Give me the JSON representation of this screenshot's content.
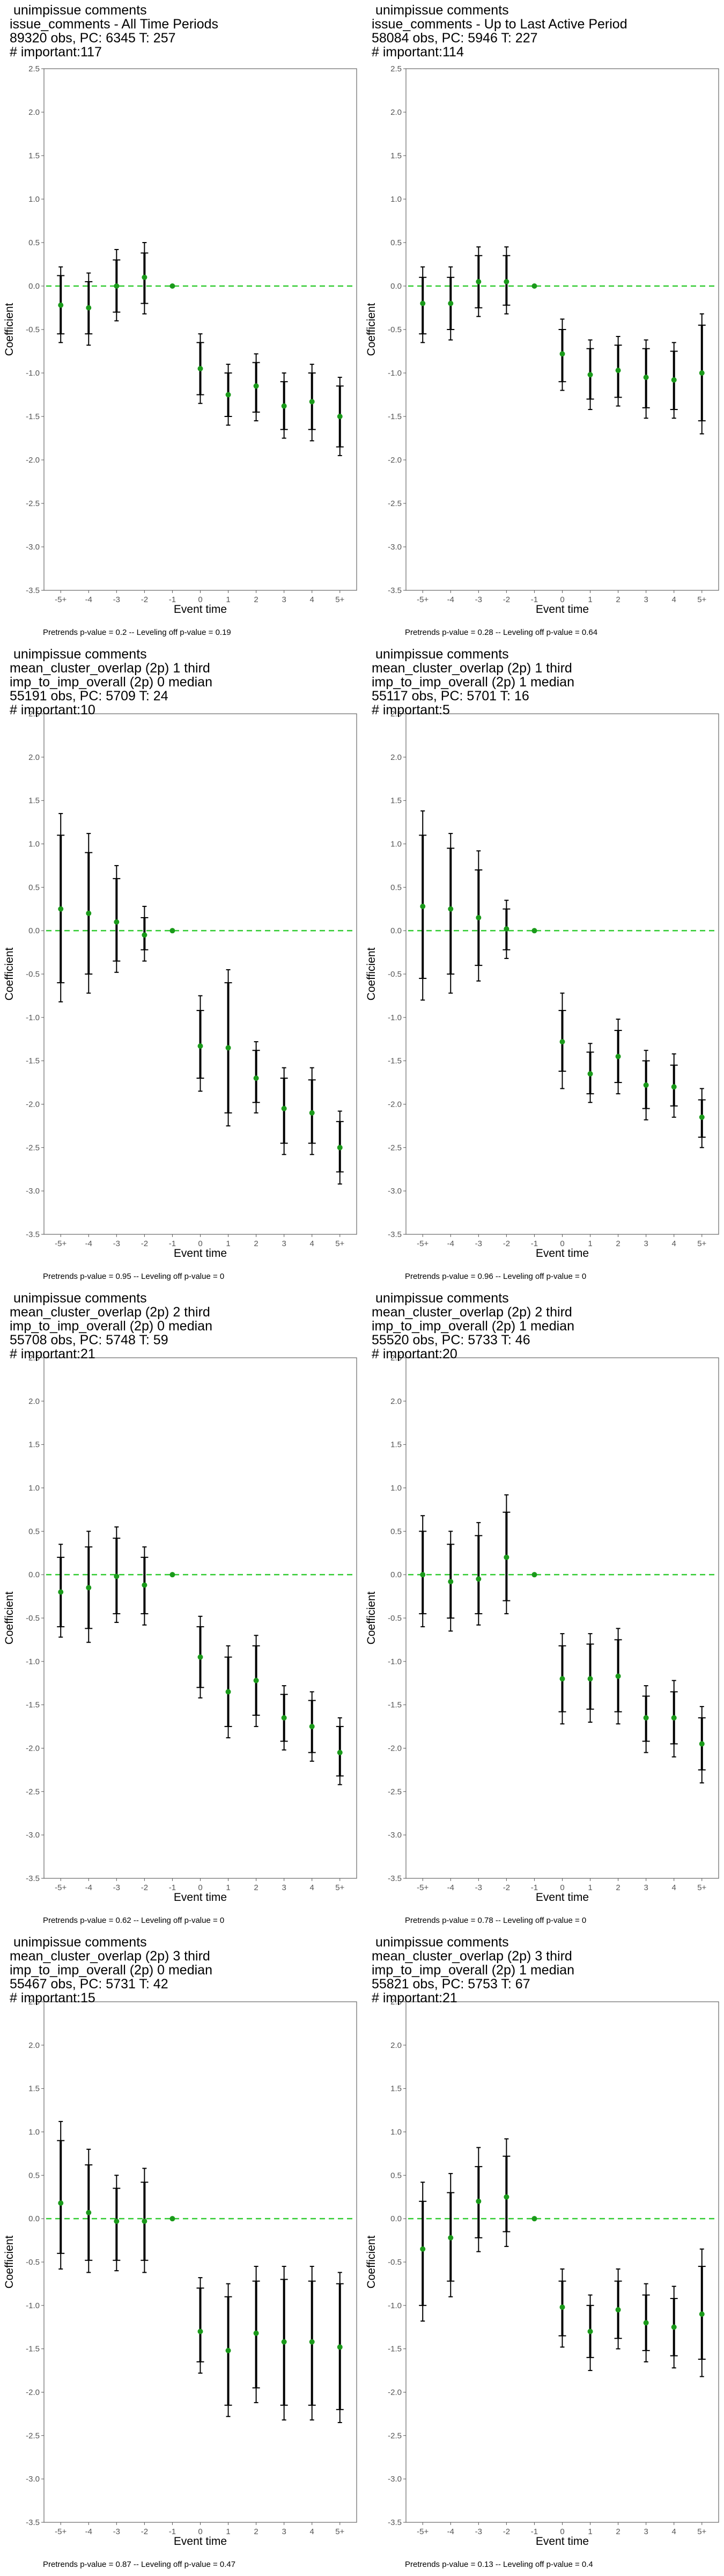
{
  "y_axis_label": "Coefficient",
  "x_axis_label": "Event time",
  "x_tick_labels": [
    "-5+",
    "-4",
    "-3",
    "-2",
    "-1",
    "0",
    "1",
    "2",
    "3",
    "4",
    "5+"
  ],
  "y_tick_labels": [
    "2.5",
    "2.0",
    "1.5",
    "1.0",
    "0.5",
    "0.0",
    "-0.5",
    "-1.0",
    "-1.5",
    "-2.0",
    "-2.5",
    "-3.0",
    "-3.5"
  ],
  "colors": {
    "point": "#1a9a1a",
    "zero_line": "#33cc33",
    "bar": "#000000"
  },
  "chart_data": [
    {
      "type": "scatter",
      "title_lines": [
        "unimpissue comments",
        "issue_comments - All Time Periods",
        "89320 obs, PC: 6345 T: 257",
        "# important:117"
      ],
      "caption": "Pretrends p-value = 0.2 -- Leveling off p-value = 0.19",
      "ylim": [
        -3.5,
        2.5
      ],
      "x": [
        "-5+",
        "-4",
        "-3",
        "-2",
        "-1",
        "0",
        "1",
        "2",
        "3",
        "4",
        "5+"
      ],
      "coef": [
        -0.22,
        -0.25,
        0.0,
        0.1,
        0.0,
        -0.95,
        -1.25,
        -1.15,
        -1.38,
        -1.33,
        -1.5
      ],
      "ci_inner": [
        [
          -0.55,
          0.12
        ],
        [
          -0.55,
          0.05
        ],
        [
          -0.3,
          0.3
        ],
        [
          -0.2,
          0.38
        ],
        null,
        [
          -1.25,
          -0.65
        ],
        [
          -1.5,
          -1.0
        ],
        [
          -1.45,
          -0.88
        ],
        [
          -1.65,
          -1.1
        ],
        [
          -1.65,
          -1.0
        ],
        [
          -1.85,
          -1.15
        ]
      ],
      "ci_outer": [
        [
          -0.65,
          0.22
        ],
        [
          -0.68,
          0.15
        ],
        [
          -0.4,
          0.42
        ],
        [
          -0.32,
          0.5
        ],
        null,
        [
          -1.35,
          -0.55
        ],
        [
          -1.6,
          -0.9
        ],
        [
          -1.55,
          -0.78
        ],
        [
          -1.75,
          -1.0
        ],
        [
          -1.78,
          -0.9
        ],
        [
          -1.95,
          -1.05
        ]
      ]
    },
    {
      "type": "scatter",
      "title_lines": [
        "unimpissue comments",
        "issue_comments - Up to Last Active Period",
        "58084 obs, PC: 5946 T: 227",
        "# important:114"
      ],
      "caption": "Pretrends p-value = 0.28 -- Leveling off p-value = 0.64",
      "ylim": [
        -3.5,
        2.5
      ],
      "x": [
        "-5+",
        "-4",
        "-3",
        "-2",
        "-1",
        "0",
        "1",
        "2",
        "3",
        "4",
        "5+"
      ],
      "coef": [
        -0.2,
        -0.2,
        0.05,
        0.05,
        0.0,
        -0.78,
        -1.02,
        -0.97,
        -1.05,
        -1.08,
        -1.0
      ],
      "ci_inner": [
        [
          -0.55,
          0.1
        ],
        [
          -0.5,
          0.1
        ],
        [
          -0.25,
          0.35
        ],
        [
          -0.22,
          0.35
        ],
        null,
        [
          -1.1,
          -0.5
        ],
        [
          -1.3,
          -0.72
        ],
        [
          -1.28,
          -0.68
        ],
        [
          -1.4,
          -0.72
        ],
        [
          -1.42,
          -0.75
        ],
        [
          -1.55,
          -0.45
        ]
      ],
      "ci_outer": [
        [
          -0.65,
          0.22
        ],
        [
          -0.62,
          0.22
        ],
        [
          -0.35,
          0.45
        ],
        [
          -0.32,
          0.45
        ],
        null,
        [
          -1.2,
          -0.38
        ],
        [
          -1.42,
          -0.62
        ],
        [
          -1.38,
          -0.58
        ],
        [
          -1.52,
          -0.62
        ],
        [
          -1.52,
          -0.65
        ],
        [
          -1.7,
          -0.32
        ]
      ]
    },
    {
      "type": "scatter",
      "title_lines": [
        "unimpissue comments",
        "mean_cluster_overlap (2p) 1 third",
        "imp_to_imp_overall (2p) 0 median",
        "55191 obs, PC: 5709 T: 24",
        "# important:10"
      ],
      "caption": "Pretrends p-value = 0.95 -- Leveling off p-value = 0",
      "ylim": [
        -3.5,
        2.5
      ],
      "x": [
        "-5+",
        "-4",
        "-3",
        "-2",
        "-1",
        "0",
        "1",
        "2",
        "3",
        "4",
        "5+"
      ],
      "coef": [
        0.25,
        0.2,
        0.1,
        -0.05,
        0.0,
        -1.33,
        -1.35,
        -1.7,
        -2.05,
        -2.1,
        -2.5
      ],
      "ci_inner": [
        [
          -0.6,
          1.1
        ],
        [
          -0.5,
          0.9
        ],
        [
          -0.35,
          0.6
        ],
        [
          -0.22,
          0.15
        ],
        null,
        [
          -1.7,
          -0.92
        ],
        [
          -2.1,
          -0.6
        ],
        [
          -1.98,
          -1.38
        ],
        [
          -2.45,
          -1.7
        ],
        [
          -2.45,
          -1.72
        ],
        [
          -2.78,
          -2.2
        ]
      ],
      "ci_outer": [
        [
          -0.82,
          1.35
        ],
        [
          -0.72,
          1.12
        ],
        [
          -0.48,
          0.75
        ],
        [
          -0.35,
          0.28
        ],
        null,
        [
          -1.85,
          -0.75
        ],
        [
          -2.25,
          -0.45
        ],
        [
          -2.1,
          -1.28
        ],
        [
          -2.58,
          -1.58
        ],
        [
          -2.58,
          -1.58
        ],
        [
          -2.92,
          -2.08
        ]
      ]
    },
    {
      "type": "scatter",
      "title_lines": [
        "unimpissue comments",
        "mean_cluster_overlap (2p) 1 third",
        "imp_to_imp_overall (2p) 1 median",
        "55117 obs, PC: 5701 T: 16",
        "# important:5"
      ],
      "caption": "Pretrends p-value = 0.96 -- Leveling off p-value = 0",
      "ylim": [
        -3.5,
        2.5
      ],
      "x": [
        "-5+",
        "-4",
        "-3",
        "-2",
        "-1",
        "0",
        "1",
        "2",
        "3",
        "4",
        "5+"
      ],
      "coef": [
        0.28,
        0.25,
        0.15,
        0.02,
        0.0,
        -1.28,
        -1.65,
        -1.45,
        -1.78,
        -1.8,
        -2.15
      ],
      "ci_inner": [
        [
          -0.55,
          1.1
        ],
        [
          -0.5,
          0.95
        ],
        [
          -0.4,
          0.7
        ],
        [
          -0.22,
          0.25
        ],
        null,
        [
          -1.62,
          -0.92
        ],
        [
          -1.88,
          -1.4
        ],
        [
          -1.75,
          -1.15
        ],
        [
          -2.05,
          -1.5
        ],
        [
          -2.02,
          -1.55
        ],
        [
          -2.38,
          -1.95
        ]
      ],
      "ci_outer": [
        [
          -0.8,
          1.38
        ],
        [
          -0.72,
          1.12
        ],
        [
          -0.58,
          0.92
        ],
        [
          -0.32,
          0.35
        ],
        null,
        [
          -1.82,
          -0.72
        ],
        [
          -1.98,
          -1.3
        ],
        [
          -1.88,
          -1.02
        ],
        [
          -2.18,
          -1.38
        ],
        [
          -2.15,
          -1.42
        ],
        [
          -2.5,
          -1.82
        ]
      ]
    },
    {
      "type": "scatter",
      "title_lines": [
        "unimpissue comments",
        "mean_cluster_overlap (2p) 2 third",
        "imp_to_imp_overall (2p) 0 median",
        "55708 obs, PC: 5748 T: 59",
        "# important:21"
      ],
      "caption": "Pretrends p-value = 0.62 -- Leveling off p-value = 0",
      "ylim": [
        -3.5,
        2.5
      ],
      "x": [
        "-5+",
        "-4",
        "-3",
        "-2",
        "-1",
        "0",
        "1",
        "2",
        "3",
        "4",
        "5+"
      ],
      "coef": [
        -0.2,
        -0.15,
        -0.02,
        -0.12,
        0.0,
        -0.95,
        -1.35,
        -1.22,
        -1.65,
        -1.75,
        -2.05
      ],
      "ci_inner": [
        [
          -0.6,
          0.2
        ],
        [
          -0.62,
          0.32
        ],
        [
          -0.45,
          0.42
        ],
        [
          -0.45,
          0.2
        ],
        null,
        [
          -1.3,
          -0.6
        ],
        [
          -1.75,
          -0.95
        ],
        [
          -1.62,
          -0.82
        ],
        [
          -1.92,
          -1.38
        ],
        [
          -2.05,
          -1.45
        ],
        [
          -2.32,
          -1.75
        ]
      ],
      "ci_outer": [
        [
          -0.72,
          0.35
        ],
        [
          -0.78,
          0.5
        ],
        [
          -0.55,
          0.55
        ],
        [
          -0.58,
          0.32
        ],
        null,
        [
          -1.42,
          -0.48
        ],
        [
          -1.88,
          -0.82
        ],
        [
          -1.75,
          -0.7
        ],
        [
          -2.02,
          -1.28
        ],
        [
          -2.15,
          -1.35
        ],
        [
          -2.42,
          -1.65
        ]
      ]
    },
    {
      "type": "scatter",
      "title_lines": [
        "unimpissue comments",
        "mean_cluster_overlap (2p) 2 third",
        "imp_to_imp_overall (2p) 1 median",
        "55520 obs, PC: 5733 T: 46",
        "# important:20"
      ],
      "caption": "Pretrends p-value = 0.78 -- Leveling off p-value = 0",
      "ylim": [
        -3.5,
        2.5
      ],
      "x": [
        "-5+",
        "-4",
        "-3",
        "-2",
        "-1",
        "0",
        "1",
        "2",
        "3",
        "4",
        "5+"
      ],
      "coef": [
        0.0,
        -0.08,
        -0.05,
        0.2,
        0.0,
        -1.2,
        -1.2,
        -1.17,
        -1.65,
        -1.65,
        -1.95
      ],
      "ci_inner": [
        [
          -0.45,
          0.5
        ],
        [
          -0.5,
          0.35
        ],
        [
          -0.45,
          0.45
        ],
        [
          -0.3,
          0.72
        ],
        null,
        [
          -1.58,
          -0.82
        ],
        [
          -1.55,
          -0.8
        ],
        [
          -1.58,
          -0.75
        ],
        [
          -1.92,
          -1.4
        ],
        [
          -1.95,
          -1.35
        ],
        [
          -2.25,
          -1.65
        ]
      ],
      "ci_outer": [
        [
          -0.6,
          0.68
        ],
        [
          -0.65,
          0.5
        ],
        [
          -0.58,
          0.6
        ],
        [
          -0.45,
          0.92
        ],
        null,
        [
          -1.72,
          -0.68
        ],
        [
          -1.7,
          -0.68
        ],
        [
          -1.72,
          -0.62
        ],
        [
          -2.05,
          -1.28
        ],
        [
          -2.1,
          -1.22
        ],
        [
          -2.4,
          -1.52
        ]
      ]
    },
    {
      "type": "scatter",
      "title_lines": [
        "unimpissue comments",
        "mean_cluster_overlap (2p) 3 third",
        "imp_to_imp_overall (2p) 0 median",
        "55467 obs, PC: 5731 T: 42",
        "# important:15"
      ],
      "caption": "Pretrends p-value = 0.87 -- Leveling off p-value = 0.47",
      "ylim": [
        -3.5,
        2.5
      ],
      "x": [
        "-5+",
        "-4",
        "-3",
        "-2",
        "-1",
        "0",
        "1",
        "2",
        "3",
        "4",
        "5+"
      ],
      "coef": [
        0.18,
        0.07,
        -0.03,
        -0.03,
        0.0,
        -1.3,
        -1.52,
        -1.32,
        -1.42,
        -1.42,
        -1.48
      ],
      "ci_inner": [
        [
          -0.4,
          0.9
        ],
        [
          -0.48,
          0.62
        ],
        [
          -0.48,
          0.35
        ],
        [
          -0.48,
          0.42
        ],
        null,
        [
          -1.65,
          -0.8
        ],
        [
          -2.15,
          -0.9
        ],
        [
          -1.95,
          -0.72
        ],
        [
          -2.15,
          -0.7
        ],
        [
          -2.15,
          -0.72
        ],
        [
          -2.2,
          -0.75
        ]
      ],
      "ci_outer": [
        [
          -0.58,
          1.12
        ],
        [
          -0.62,
          0.8
        ],
        [
          -0.6,
          0.5
        ],
        [
          -0.62,
          0.58
        ],
        null,
        [
          -1.78,
          -0.68
        ],
        [
          -2.28,
          -0.75
        ],
        [
          -2.12,
          -0.55
        ],
        [
          -2.32,
          -0.55
        ],
        [
          -2.32,
          -0.55
        ],
        [
          -2.35,
          -0.62
        ]
      ]
    },
    {
      "type": "scatter",
      "title_lines": [
        "unimpissue comments",
        "mean_cluster_overlap (2p) 3 third",
        "imp_to_imp_overall (2p) 1 median",
        "55821 obs, PC: 5753 T: 67",
        "# important:21"
      ],
      "caption": "Pretrends p-value = 0.13 -- Leveling off p-value = 0.4",
      "ylim": [
        -3.5,
        2.5
      ],
      "x": [
        "-5+",
        "-4",
        "-3",
        "-2",
        "-1",
        "0",
        "1",
        "2",
        "3",
        "4",
        "5+"
      ],
      "coef": [
        -0.35,
        -0.22,
        0.2,
        0.25,
        0.0,
        -1.02,
        -1.3,
        -1.05,
        -1.2,
        -1.25,
        -1.1
      ],
      "ci_inner": [
        [
          -1.0,
          0.2
        ],
        [
          -0.72,
          0.3
        ],
        [
          -0.22,
          0.6
        ],
        [
          -0.15,
          0.72
        ],
        null,
        [
          -1.35,
          -0.72
        ],
        [
          -1.6,
          -1.0
        ],
        [
          -1.38,
          -0.72
        ],
        [
          -1.52,
          -0.88
        ],
        [
          -1.58,
          -0.92
        ],
        [
          -1.62,
          -0.55
        ]
      ],
      "ci_outer": [
        [
          -1.18,
          0.42
        ],
        [
          -0.9,
          0.52
        ],
        [
          -0.38,
          0.82
        ],
        [
          -0.32,
          0.92
        ],
        null,
        [
          -1.48,
          -0.58
        ],
        [
          -1.75,
          -0.88
        ],
        [
          -1.5,
          -0.58
        ],
        [
          -1.65,
          -0.75
        ],
        [
          -1.72,
          -0.78
        ],
        [
          -1.82,
          -0.35
        ]
      ]
    }
  ]
}
